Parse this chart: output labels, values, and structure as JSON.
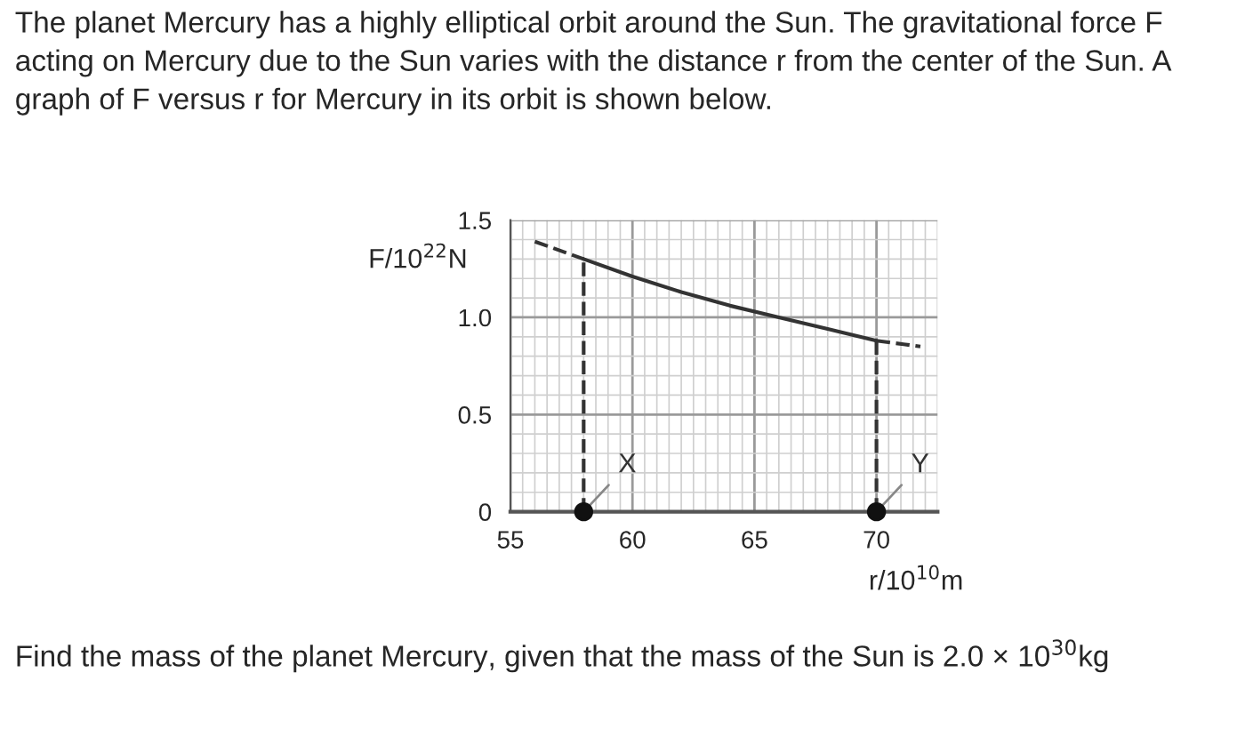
{
  "chart_data": {
    "type": "line",
    "title": "The planet Mercury has a highly elliptical orbit around the Sun. The gravitational force F acting on Mercury due to the Sun varies with the distance r from the center of the Sun. A graph of F versus r for Mercury in its orbit is shown below.",
    "xlabel": "r/10$^{10}$m",
    "ylabel": "F/10$^{22}$N",
    "series": [
      {
        "color": "#333333",
        "line_style": "solid",
        "x": [
          58,
          60,
          62,
          64,
          66,
          68,
          70
        ],
        "values": [
          1.3,
          1.21,
          1.13,
          1.06,
          1.0,
          0.94,
          0.88
        ]
      },
      {
        "color": "#333333",
        "line_style": "dashed",
        "x": [
          56,
          58
        ],
        "values": [
          1.39,
          1.3
        ]
      },
      {
        "color": "#333333",
        "line_style": "dashed",
        "x": [
          70,
          71.8
        ],
        "values": [
          0.88,
          0.85
        ]
      },
      {
        "color": "#333333",
        "line_style": "dashed",
        "x": [
          58,
          58
        ],
        "values": [
          0,
          1.3
        ]
      },
      {
        "color": "#333333",
        "line_style": "dashed",
        "x": [
          70,
          70
        ],
        "values": [
          0,
          0.88
        ]
      },
      {
        "type": "scatter",
        "color": "#111111",
        "marker": "circle",
        "x": [
          58,
          70
        ],
        "values": [
          0,
          0
        ]
      }
    ],
    "annotations": [
      {
        "text": "X",
        "x": 58,
        "y": 0
      },
      {
        "text": "Y",
        "x": 70,
        "y": 0
      },
      "Find the mass of the planet Mercury, given that the mass of the Sun is 2.0 × 10$^{30}$kg"
    ],
    "xlim": [
      55,
      72.5
    ],
    "ylim": [
      0,
      1.5
    ],
    "xticks": [
      55,
      60,
      65,
      70
    ],
    "yticks": [
      0,
      0.5,
      {
        "value": 1,
        "label": "1.0"
      },
      1.5
    ],
    "grid": true
  }
}
